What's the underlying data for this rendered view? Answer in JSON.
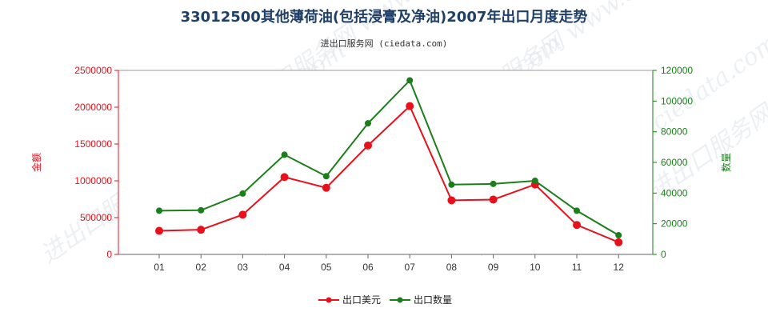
{
  "chart_data": {
    "type": "line",
    "title": "33012500其他薄荷油(包括浸膏及净油)2007年出口月度走势",
    "subtitle": "进出口服务网 (ciedata.com)",
    "watermark": "进出口服务网 www.ciedata.com",
    "categories": [
      "01",
      "02",
      "03",
      "04",
      "05",
      "06",
      "07",
      "08",
      "09",
      "10",
      "11",
      "12"
    ],
    "y_left": {
      "label": "金额",
      "ylim": [
        0,
        2500000
      ],
      "ticks": [
        0,
        500000,
        1000000,
        1500000,
        2000000,
        2500000
      ],
      "tick_labels": [
        "0",
        "500000",
        "1000000",
        "1500000",
        "2000000",
        "2500000"
      ],
      "color": "#e8101b"
    },
    "y_right": {
      "label": "数量",
      "ylim": [
        0,
        120000
      ],
      "ticks": [
        0,
        20000,
        40000,
        60000,
        80000,
        100000,
        120000
      ],
      "tick_labels": [
        "0",
        "20000",
        "40000",
        "60000",
        "80000",
        "100000",
        "120000"
      ],
      "color": "#1a7f1a"
    },
    "series": [
      {
        "name": "出口美元",
        "axis": "left",
        "color": "#e8101b",
        "values": [
          320000,
          335000,
          540000,
          1050000,
          905000,
          1480000,
          2015000,
          735000,
          745000,
          950000,
          400000,
          165000
        ]
      },
      {
        "name": "出口数量",
        "axis": "right",
        "color": "#1a7f1a",
        "values": [
          28500,
          28800,
          39700,
          65000,
          51000,
          85500,
          113500,
          45500,
          46000,
          48000,
          28500,
          12500
        ]
      }
    ],
    "grid": false,
    "legend": "bottom-center"
  }
}
